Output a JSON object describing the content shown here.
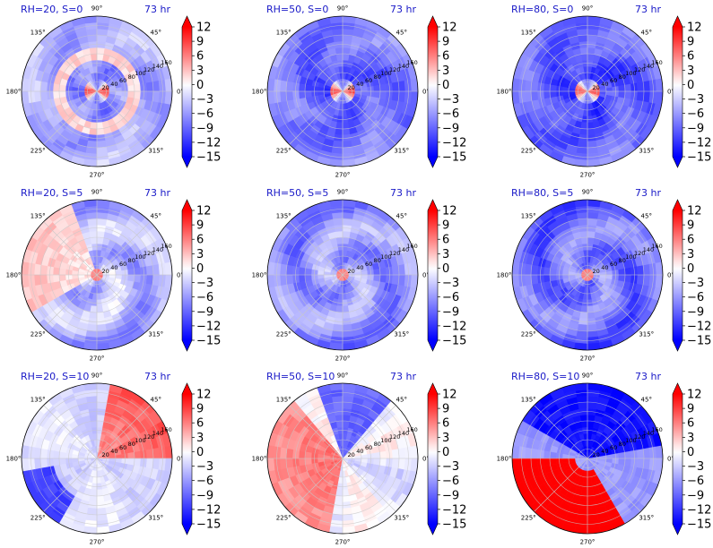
{
  "chart_data": {
    "type": "heatmap",
    "projection": "polar",
    "time_label": "73 hr",
    "angle_ticks": [
      "0°",
      "45°",
      "90°",
      "135°",
      "180°",
      "225°",
      "270°",
      "315°"
    ],
    "radial_ticks": [
      "20",
      "40",
      "60",
      "80",
      "100",
      "120",
      "140",
      "160"
    ],
    "radial_max": 160,
    "colorbar": {
      "ticks": [
        "12",
        "9",
        "6",
        "3",
        "0",
        "−3",
        "−6",
        "−9",
        "−12",
        "−15"
      ],
      "range": [
        -15,
        12
      ],
      "colormap": "bwr",
      "extend": "both"
    },
    "panels": [
      {
        "title": "RH=20, S=0",
        "rh": 20,
        "shear": 0
      },
      {
        "title": "RH=50, S=0",
        "rh": 50,
        "shear": 0
      },
      {
        "title": "RH=80, S=0",
        "rh": 80,
        "shear": 0
      },
      {
        "title": "RH=20, S=5",
        "rh": 20,
        "shear": 5
      },
      {
        "title": "RH=50, S=5",
        "rh": 50,
        "shear": 5
      },
      {
        "title": "RH=80, S=5",
        "rh": 80,
        "shear": 5
      },
      {
        "title": "RH=20, S=10",
        "rh": 20,
        "shear": 10
      },
      {
        "title": "RH=50, S=10",
        "rh": 50,
        "shear": 10
      },
      {
        "title": "RH=80, S=10",
        "rh": 80,
        "shear": 10
      }
    ]
  },
  "colors": {
    "title": "#1a1ac8",
    "max_red": "#ff0000",
    "max_blue": "#0000ff",
    "grid": "#c8c8c8"
  }
}
